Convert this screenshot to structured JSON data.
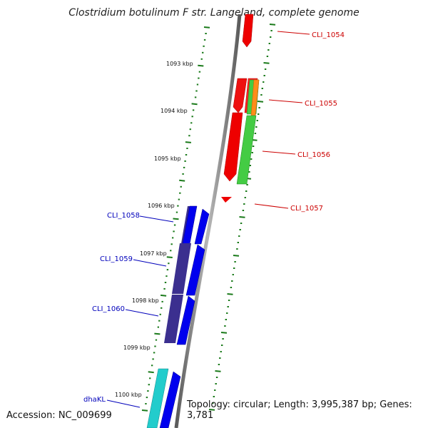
{
  "title": "Clostridium botulinum F str. Langeland, complete genome",
  "accession": "Accession: NC_009699",
  "topology": "Topology: circular; Length: 3,995,387 bp; Genes: 3,781",
  "kbp_labels": [
    "1093 kbp",
    "1094 kbp",
    "1095 kbp",
    "1096 kbp",
    "1097 kbp",
    "1098 kbp",
    "1099 kbp",
    "1100 kbp"
  ],
  "gene_labels": {
    "cli_1054": "CLI_1054",
    "cli_1055": "CLI_1055",
    "cli_1056": "CLI_1056",
    "cli_1057": "CLI_1057",
    "cli_1058": "CLI_1058",
    "cli_1059": "CLI_1059",
    "cli_1060": "CLI_1060",
    "dhakl": "dhaKL"
  },
  "colors": {
    "forward_label": "#cc0000",
    "reverse_label": "#0000bb",
    "tick": "#1a7a1a",
    "backbone": "#8a8a8a"
  }
}
